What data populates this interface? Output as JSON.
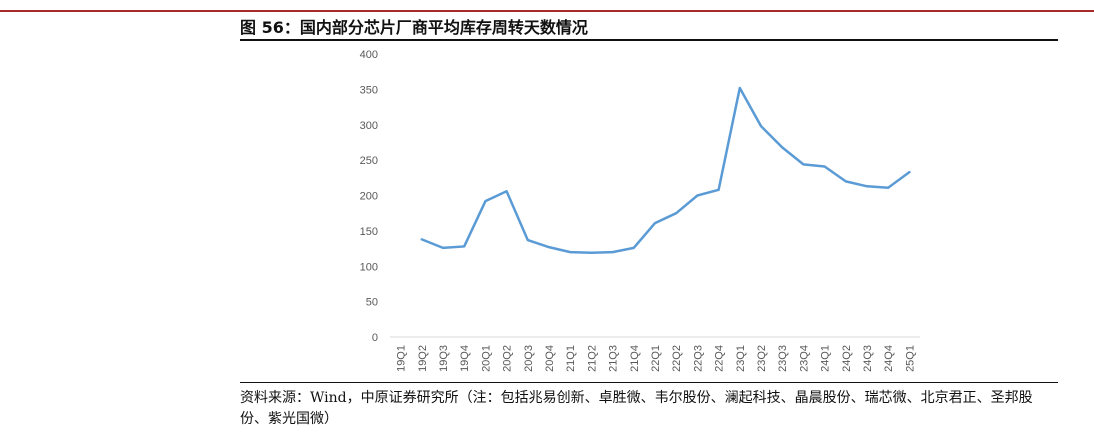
{
  "header": {
    "title": "图 56：国内部分芯片厂商平均库存周转天数情况"
  },
  "footer": {
    "source": "资料来源：Wind，中原证券研究所（注：包括兆易创新、卓胜微、韦尔股份、澜起科技、晶晨股份、瑞芯微、北京君正、圣邦股份、紫光国微）"
  },
  "chart_data": {
    "type": "line",
    "title": "图 56：国内部分芯片厂商平均库存周转天数情况",
    "xlabel": "",
    "ylabel": "",
    "ylim": [
      0,
      400
    ],
    "yticks": [
      0,
      50,
      100,
      150,
      200,
      250,
      300,
      350,
      400
    ],
    "grid": false,
    "legend": "none",
    "categories": [
      "19Q1",
      "19Q2",
      "19Q3",
      "19Q4",
      "20Q1",
      "20Q2",
      "20Q3",
      "20Q4",
      "21Q1",
      "21Q2",
      "21Q3",
      "21Q4",
      "22Q1",
      "22Q2",
      "22Q3",
      "22Q4",
      "23Q1",
      "23Q2",
      "23Q3",
      "23Q4",
      "24Q1",
      "24Q2",
      "24Q3",
      "24Q4",
      "25Q1"
    ],
    "series": [
      {
        "color": "#5b9bd5",
        "values": [
          null,
          138,
          126,
          128,
          192,
          206,
          137,
          127,
          120,
          119,
          120,
          126,
          161,
          175,
          200,
          208,
          352,
          298,
          268,
          244,
          241,
          220,
          213,
          211,
          233
        ]
      }
    ]
  }
}
